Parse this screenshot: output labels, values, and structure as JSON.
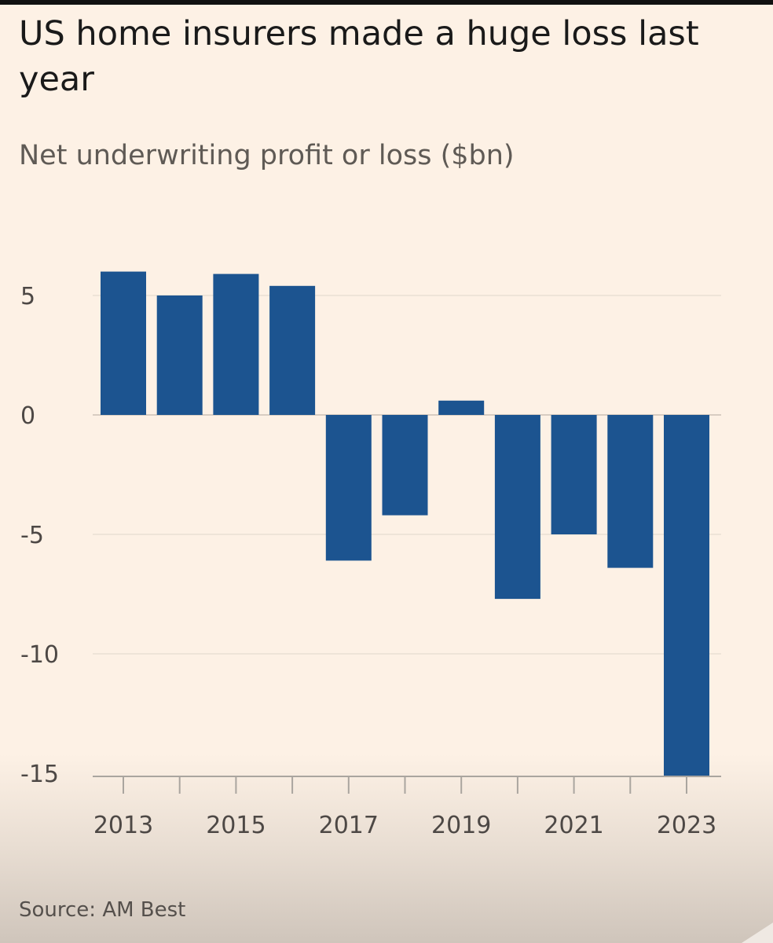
{
  "title": "US home insurers made a huge loss last year",
  "subtitle": "Net underwriting profit or loss ($bn)",
  "source": "Source: AM Best",
  "colors": {
    "bar": "#1c5490",
    "grid": "#eadfd4",
    "zero_line": "#d8cdc2",
    "axis": "#aaa59f",
    "text": "#4d4845"
  },
  "chart_data": {
    "type": "bar",
    "title": "US home insurers made a huge loss last year",
    "ylabel": "Net underwriting profit or loss ($bn)",
    "xlabel": "",
    "categories": [
      "2013",
      "2014",
      "2015",
      "2016",
      "2017",
      "2018",
      "2019",
      "2020",
      "2021",
      "2022",
      "2023"
    ],
    "values": [
      6.0,
      5.0,
      5.9,
      5.4,
      -6.1,
      -4.2,
      0.6,
      -7.7,
      -5.0,
      -6.4,
      -15.3
    ],
    "x_tick_labels": [
      "2013",
      "2015",
      "2017",
      "2019",
      "2021",
      "2023"
    ],
    "y_ticks": [
      5,
      0,
      -5,
      -10,
      -15
    ],
    "y_tick_labels": [
      "5",
      "0",
      "-5",
      "-10",
      "-15"
    ],
    "ylim": [
      -15.3,
      6.5
    ],
    "grid": true
  }
}
